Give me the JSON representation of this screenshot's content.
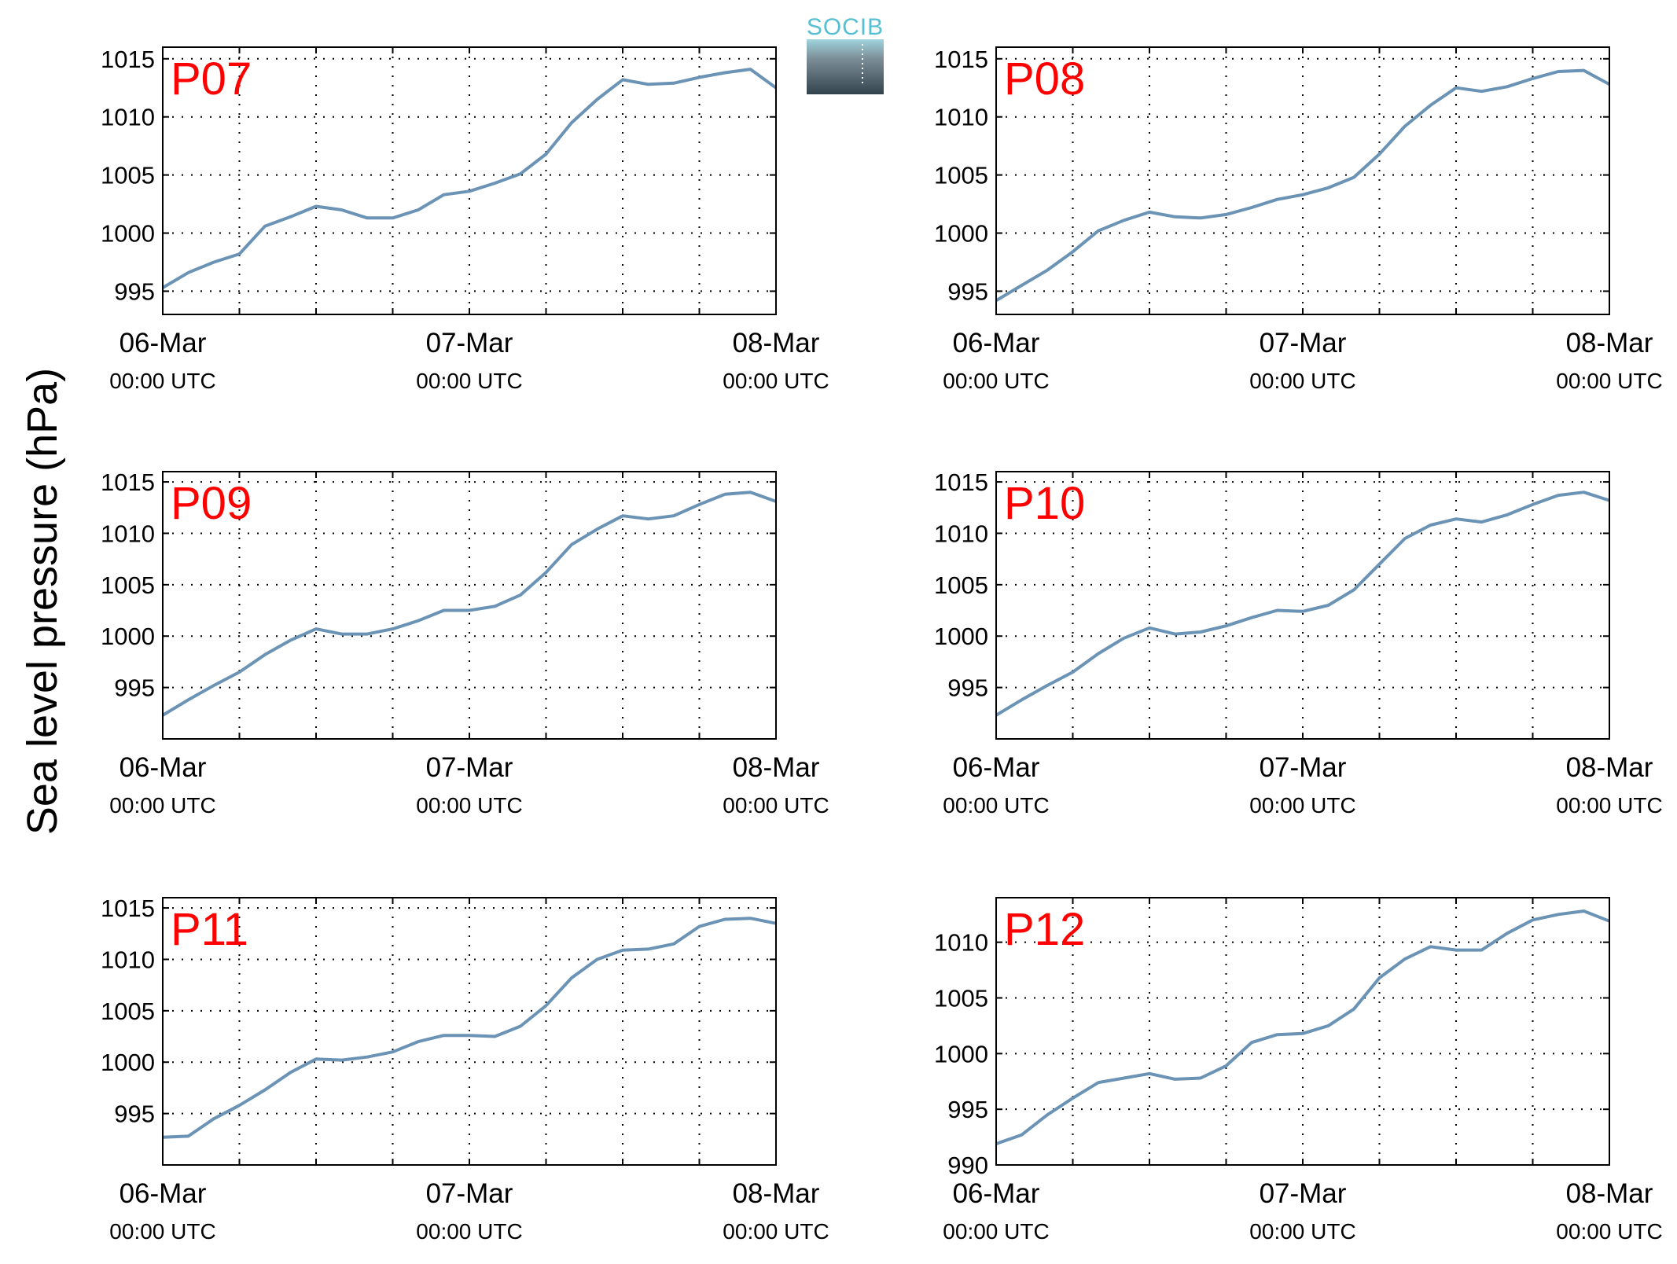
{
  "ylabel": "Sea level pressure (hPa)",
  "logo": {
    "text": "SOCIB"
  },
  "colors": {
    "line": "#6b93b5",
    "title": "#ff0000",
    "axis": "#000000",
    "grid": "#000000",
    "logo_text": "#55bfd3"
  },
  "chart_data": [
    {
      "type": "line",
      "title": "P07",
      "x_ticks": [
        {
          "date": "06-Mar",
          "time": "00:00 UTC"
        },
        {
          "date": "07-Mar",
          "time": "00:00 UTC"
        },
        {
          "date": "08-Mar",
          "time": "00:00 UTC"
        }
      ],
      "xlim": [
        "2015-03-06 00:00",
        "2015-03-08 00:00"
      ],
      "ylim": [
        993,
        1016
      ],
      "yticks": [
        995,
        1000,
        1005,
        1010,
        1015
      ],
      "grid": true,
      "x_hours": [
        0,
        2,
        4,
        6,
        8,
        10,
        12,
        14,
        16,
        18,
        20,
        22,
        24,
        26,
        28,
        30,
        32,
        34,
        36,
        38,
        40,
        42,
        44,
        46,
        48
      ],
      "values": [
        995.3,
        996.6,
        997.5,
        998.2,
        1000.6,
        1001.4,
        1002.3,
        1002,
        1001.3,
        1001.3,
        1002,
        1003.3,
        1003.6,
        1004.3,
        1005.1,
        1006.8,
        1009.5,
        1011.5,
        1013.2,
        1012.8,
        1012.9,
        1013.4,
        1013.8,
        1014.1,
        1012.5
      ]
    },
    {
      "type": "line",
      "title": "P08",
      "x_ticks": [
        {
          "date": "06-Mar",
          "time": "00:00 UTC"
        },
        {
          "date": "07-Mar",
          "time": "00:00 UTC"
        },
        {
          "date": "08-Mar",
          "time": "00:00 UTC"
        }
      ],
      "xlim": [
        "2015-03-06 00:00",
        "2015-03-08 00:00"
      ],
      "ylim": [
        993,
        1016
      ],
      "yticks": [
        995,
        1000,
        1005,
        1010,
        1015
      ],
      "grid": true,
      "x_hours": [
        0,
        2,
        4,
        6,
        8,
        10,
        12,
        14,
        16,
        18,
        20,
        22,
        24,
        26,
        28,
        30,
        32,
        34,
        36,
        38,
        40,
        42,
        44,
        46,
        48
      ],
      "values": [
        994.2,
        995.5,
        996.8,
        998.4,
        1000.2,
        1001.1,
        1001.8,
        1001.4,
        1001.3,
        1001.6,
        1002.2,
        1002.9,
        1003.3,
        1003.9,
        1004.8,
        1006.8,
        1009.2,
        1011,
        1012.5,
        1012.2,
        1012.6,
        1013.3,
        1013.9,
        1014,
        1012.8
      ]
    },
    {
      "type": "line",
      "title": "P09",
      "x_ticks": [
        {
          "date": "06-Mar",
          "time": "00:00 UTC"
        },
        {
          "date": "07-Mar",
          "time": "00:00 UTC"
        },
        {
          "date": "08-Mar",
          "time": "00:00 UTC"
        }
      ],
      "xlim": [
        "2015-03-06 00:00",
        "2015-03-08 00:00"
      ],
      "ylim": [
        990,
        1016
      ],
      "yticks": [
        995,
        1000,
        1005,
        1010,
        1015
      ],
      "grid": true,
      "x_hours": [
        0,
        2,
        4,
        6,
        8,
        10,
        12,
        14,
        16,
        18,
        20,
        22,
        24,
        26,
        28,
        30,
        32,
        34,
        36,
        38,
        40,
        42,
        44,
        46,
        48
      ],
      "values": [
        992.3,
        993.8,
        995.2,
        996.5,
        998.2,
        999.6,
        1000.7,
        1000.2,
        1000.2,
        1000.7,
        1001.5,
        1002.5,
        1002.5,
        1002.9,
        1004,
        1006.2,
        1008.9,
        1010.4,
        1011.7,
        1011.4,
        1011.7,
        1012.8,
        1013.8,
        1014,
        1013.1
      ]
    },
    {
      "type": "line",
      "title": "P10",
      "x_ticks": [
        {
          "date": "06-Mar",
          "time": "00:00 UTC"
        },
        {
          "date": "07-Mar",
          "time": "00:00 UTC"
        },
        {
          "date": "08-Mar",
          "time": "00:00 UTC"
        }
      ],
      "xlim": [
        "2015-03-06 00:00",
        "2015-03-08 00:00"
      ],
      "ylim": [
        990,
        1016
      ],
      "yticks": [
        995,
        1000,
        1005,
        1010,
        1015
      ],
      "grid": true,
      "x_hours": [
        0,
        2,
        4,
        6,
        8,
        10,
        12,
        14,
        16,
        18,
        20,
        22,
        24,
        26,
        28,
        30,
        32,
        34,
        36,
        38,
        40,
        42,
        44,
        46,
        48
      ],
      "values": [
        992.3,
        993.8,
        995.2,
        996.5,
        998.3,
        999.8,
        1000.8,
        1000.2,
        1000.4,
        1001,
        1001.8,
        1002.5,
        1002.4,
        1003,
        1004.5,
        1007,
        1009.5,
        1010.8,
        1011.4,
        1011.1,
        1011.8,
        1012.8,
        1013.7,
        1014,
        1013.2
      ]
    },
    {
      "type": "line",
      "title": "P11",
      "x_ticks": [
        {
          "date": "06-Mar",
          "time": "00:00 UTC"
        },
        {
          "date": "07-Mar",
          "time": "00:00 UTC"
        },
        {
          "date": "08-Mar",
          "time": "00:00 UTC"
        }
      ],
      "xlim": [
        "2015-03-06 00:00",
        "2015-03-08 00:00"
      ],
      "ylim": [
        990,
        1016
      ],
      "yticks": [
        995,
        1000,
        1005,
        1010,
        1015
      ],
      "grid": true,
      "x_hours": [
        0,
        2,
        4,
        6,
        8,
        10,
        12,
        14,
        16,
        18,
        20,
        22,
        24,
        26,
        28,
        30,
        32,
        34,
        36,
        38,
        40,
        42,
        44,
        46,
        48
      ],
      "values": [
        992.7,
        992.8,
        994.5,
        995.8,
        997.3,
        999,
        1000.3,
        1000.2,
        1000.5,
        1001,
        1002,
        1002.6,
        1002.6,
        1002.5,
        1003.5,
        1005.5,
        1008.2,
        1010,
        1010.9,
        1011,
        1011.5,
        1013.2,
        1013.9,
        1014,
        1013.5
      ]
    },
    {
      "type": "line",
      "title": "P12",
      "x_ticks": [
        {
          "date": "06-Mar",
          "time": "00:00 UTC"
        },
        {
          "date": "07-Mar",
          "time": "00:00 UTC"
        },
        {
          "date": "08-Mar",
          "time": "00:00 UTC"
        }
      ],
      "xlim": [
        "2015-03-06 00:00",
        "2015-03-08 00:00"
      ],
      "ylim": [
        990,
        1014
      ],
      "yticks": [
        990,
        995,
        1000,
        1005,
        1010
      ],
      "grid": true,
      "x_hours": [
        0,
        2,
        4,
        6,
        8,
        10,
        12,
        14,
        16,
        18,
        20,
        22,
        24,
        26,
        28,
        30,
        32,
        34,
        36,
        38,
        40,
        42,
        44,
        46,
        48
      ],
      "values": [
        991.9,
        992.7,
        994.5,
        996,
        997.4,
        997.8,
        998.2,
        997.7,
        997.8,
        998.9,
        1001,
        1001.7,
        1001.8,
        1002.5,
        1004,
        1006.8,
        1008.5,
        1009.6,
        1009.3,
        1009.3,
        1010.8,
        1012,
        1012.5,
        1012.8,
        1011.9
      ]
    }
  ]
}
